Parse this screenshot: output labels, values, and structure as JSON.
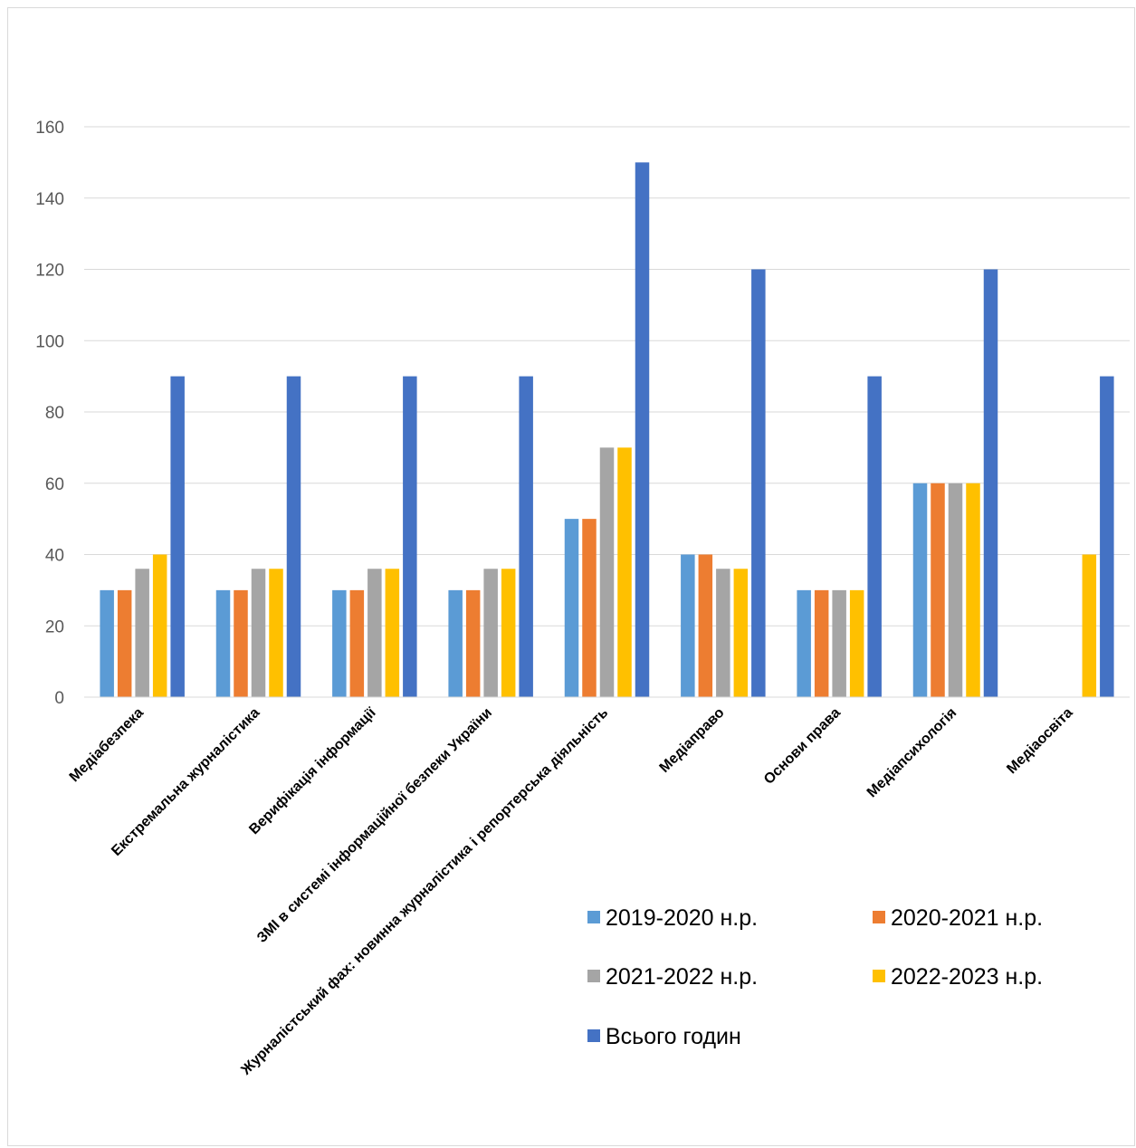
{
  "chart_data": {
    "type": "bar",
    "title": "",
    "xlabel": "",
    "ylabel": "",
    "ylim": [
      0,
      160
    ],
    "yticks": [
      0,
      20,
      40,
      60,
      80,
      100,
      120,
      140,
      160
    ],
    "grid": true,
    "legend_position": "bottom-right",
    "categories": [
      "Медіабезпека",
      "Екстремальна журналістика",
      "Верифікація інформації",
      "ЗМІ в системі інформаційної безпеки України",
      "Журналістський фах: новинна журналістика і репортерська діяльність",
      "Медіаправо",
      "Основи права",
      "Медіапсихологія",
      "Медіаосвіта"
    ],
    "series": [
      {
        "name": "2019-2020 н.р.",
        "color": "#5b9bd5",
        "values": [
          30,
          30,
          30,
          30,
          50,
          40,
          30,
          60,
          null
        ]
      },
      {
        "name": "2020-2021 н.р.",
        "color": "#ed7d31",
        "values": [
          30,
          30,
          30,
          30,
          50,
          40,
          30,
          60,
          null
        ]
      },
      {
        "name": "2021-2022 н.р.",
        "color": "#a5a5a5",
        "values": [
          36,
          36,
          36,
          36,
          70,
          36,
          30,
          60,
          null
        ]
      },
      {
        "name": "2022-2023 н.р.",
        "color": "#ffc000",
        "values": [
          40,
          36,
          36,
          36,
          70,
          36,
          30,
          60,
          40
        ]
      },
      {
        "name": "Всього годин",
        "color": "#4472c4",
        "values": [
          90,
          90,
          90,
          90,
          150,
          120,
          90,
          120,
          90
        ]
      }
    ]
  }
}
